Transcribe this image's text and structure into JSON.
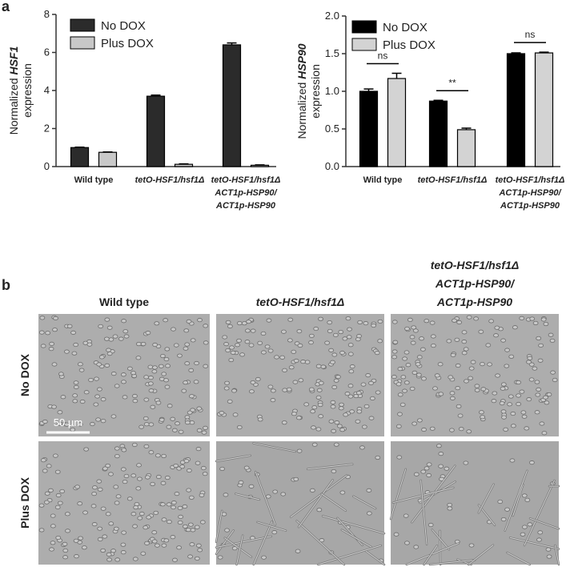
{
  "panel_labels": [
    "a",
    "b"
  ],
  "chart_data": [
    {
      "type": "bar",
      "ylabel": {
        "prefix": "Normalized",
        "gene": "HSF1",
        "suffix": "expression"
      },
      "categories": [
        [
          "Wild type"
        ],
        [
          "tetO-HSF1/hsf1Δ"
        ],
        [
          "tetO-HSF1/hsf1Δ",
          "ACT1p-HSP90/",
          "ACT1p-HSP90"
        ]
      ],
      "series": [
        {
          "name": "No DOX",
          "color": "#2b2b2b",
          "values": [
            1.0,
            3.7,
            6.4
          ],
          "errors": [
            0.02,
            0.06,
            0.1
          ]
        },
        {
          "name": "Plus DOX",
          "color": "#c8c8c8",
          "values": [
            0.75,
            0.12,
            0.07
          ],
          "errors": [
            0.02,
            0.02,
            0.02
          ]
        }
      ],
      "ylim": [
        0,
        8
      ],
      "yticks": [
        0,
        2,
        4,
        6,
        8
      ],
      "legend": "upper left"
    },
    {
      "type": "bar",
      "ylabel": {
        "prefix": "Normalized",
        "gene": "HSP90",
        "suffix": "expression"
      },
      "categories": [
        [
          "Wild type"
        ],
        [
          "tetO-HSF1/hsf1Δ"
        ],
        [
          "tetO-HSF1/hsf1Δ",
          "ACT1p-HSP90/",
          "ACT1p-HSP90"
        ]
      ],
      "series": [
        {
          "name": "No DOX",
          "color": "#000000",
          "values": [
            1.0,
            0.87,
            1.5
          ],
          "errors": [
            0.03,
            0.01,
            0.01
          ]
        },
        {
          "name": "Plus DOX",
          "color": "#d3d3d3",
          "values": [
            1.17,
            0.49,
            1.51
          ],
          "errors": [
            0.07,
            0.02,
            0.01
          ]
        }
      ],
      "significance": [
        "ns",
        "**",
        "ns"
      ],
      "ylim": [
        0,
        2
      ],
      "yticks": [
        {
          "value": 0,
          "label": "0.0"
        },
        {
          "value": 0.5,
          "label": "0.5"
        },
        {
          "value": 1,
          "label": "1.0"
        },
        {
          "value": 1.5,
          "label": "1.5"
        },
        {
          "value": 2,
          "label": "2.0"
        }
      ],
      "legend": "upper left"
    }
  ],
  "micrographs": {
    "columns": [
      [
        "Wild type"
      ],
      [
        "tetO-HSF1/hsf1Δ"
      ],
      [
        "tetO-HSF1/hsf1Δ",
        "ACT1p-HSP90/",
        "ACT1p-HSP90"
      ]
    ],
    "rows": [
      "No DOX",
      "Plus DOX"
    ],
    "scale_bar": "50 µm"
  }
}
